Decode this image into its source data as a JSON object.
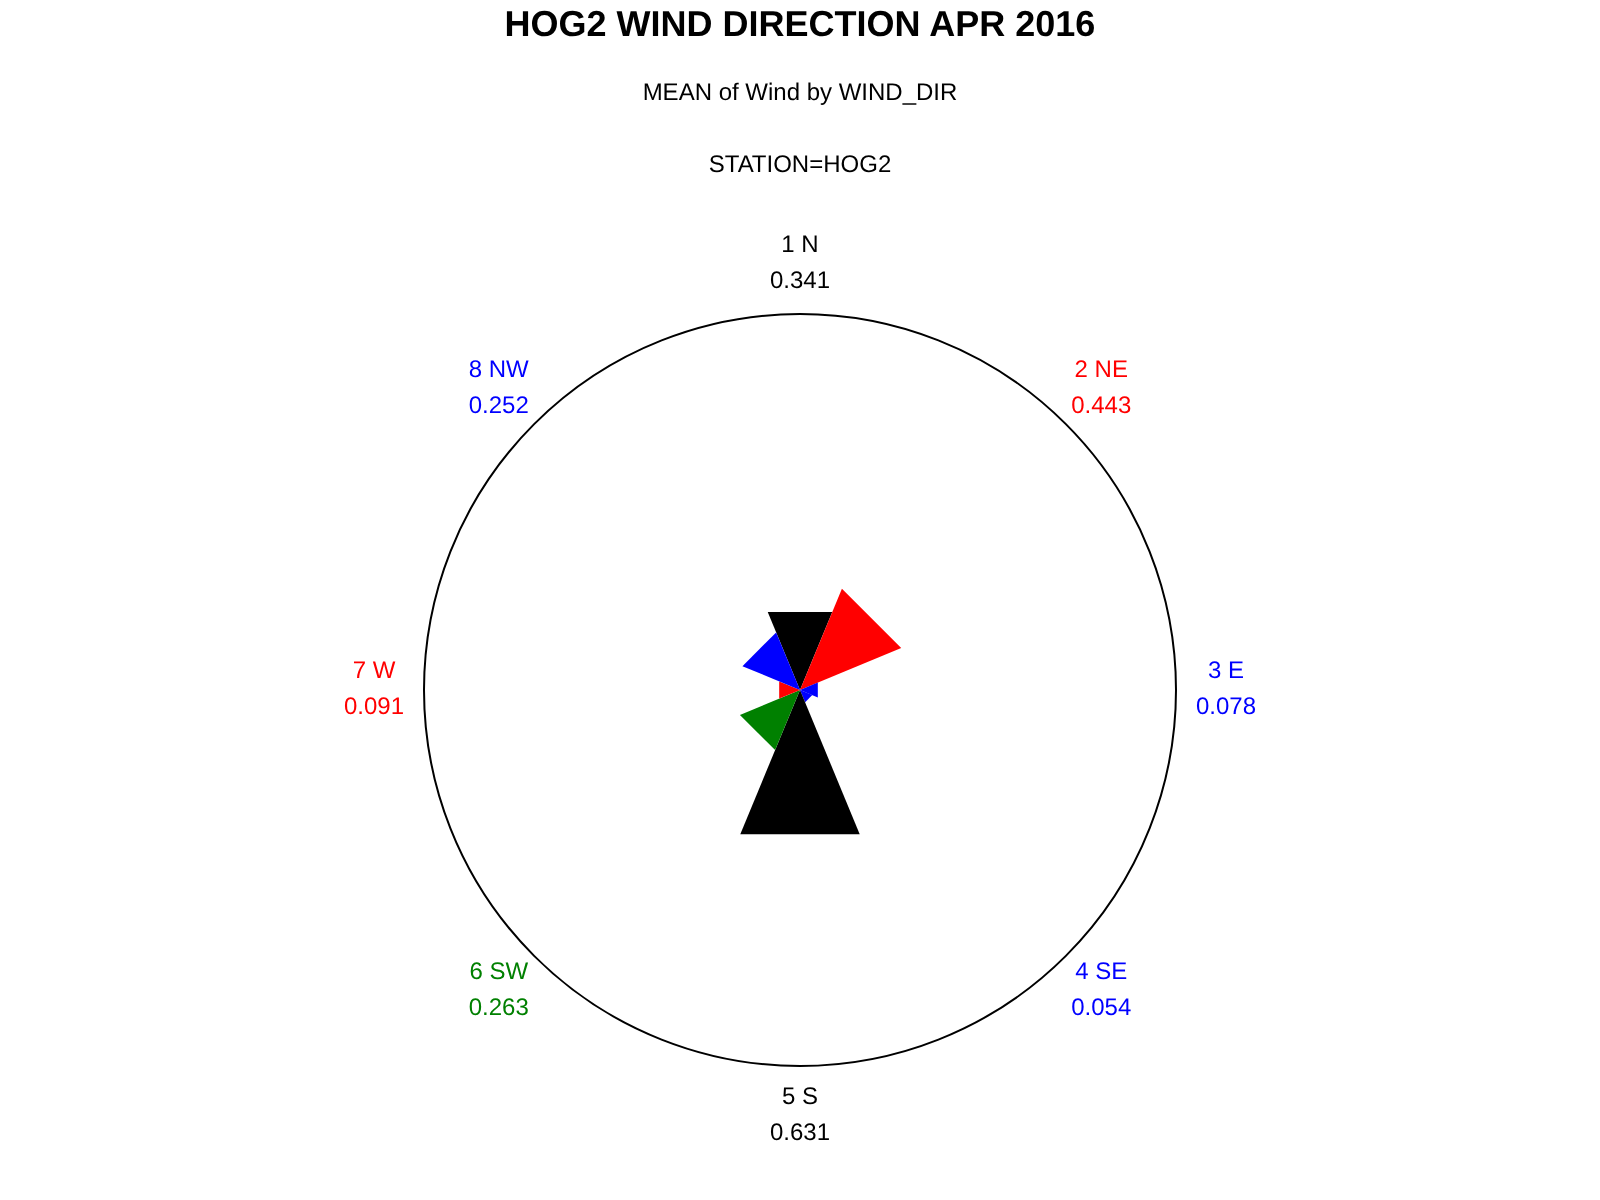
{
  "chart_data": {
    "type": "other",
    "title": "HOG2 WIND DIRECTION APR 2016",
    "subtitle": "MEAN of Wind by WIND_DIR",
    "annotations": [
      "STATION=HOG2"
    ],
    "categories": [
      "1 N",
      "2 NE",
      "3 E",
      "4 SE",
      "5 S",
      "6 SW",
      "7 W",
      "8 NW"
    ],
    "series": [
      {
        "values": [
          0.341,
          0.443,
          0.078,
          0.054,
          0.631,
          0.263,
          0.091,
          0.252
        ],
        "colors": [
          "#000000",
          "#ff0000",
          "#0000ff",
          "#0000ff",
          "#000000",
          "#008000",
          "#ff0000",
          "#0000ff"
        ]
      }
    ],
    "data_labels": true
  }
}
